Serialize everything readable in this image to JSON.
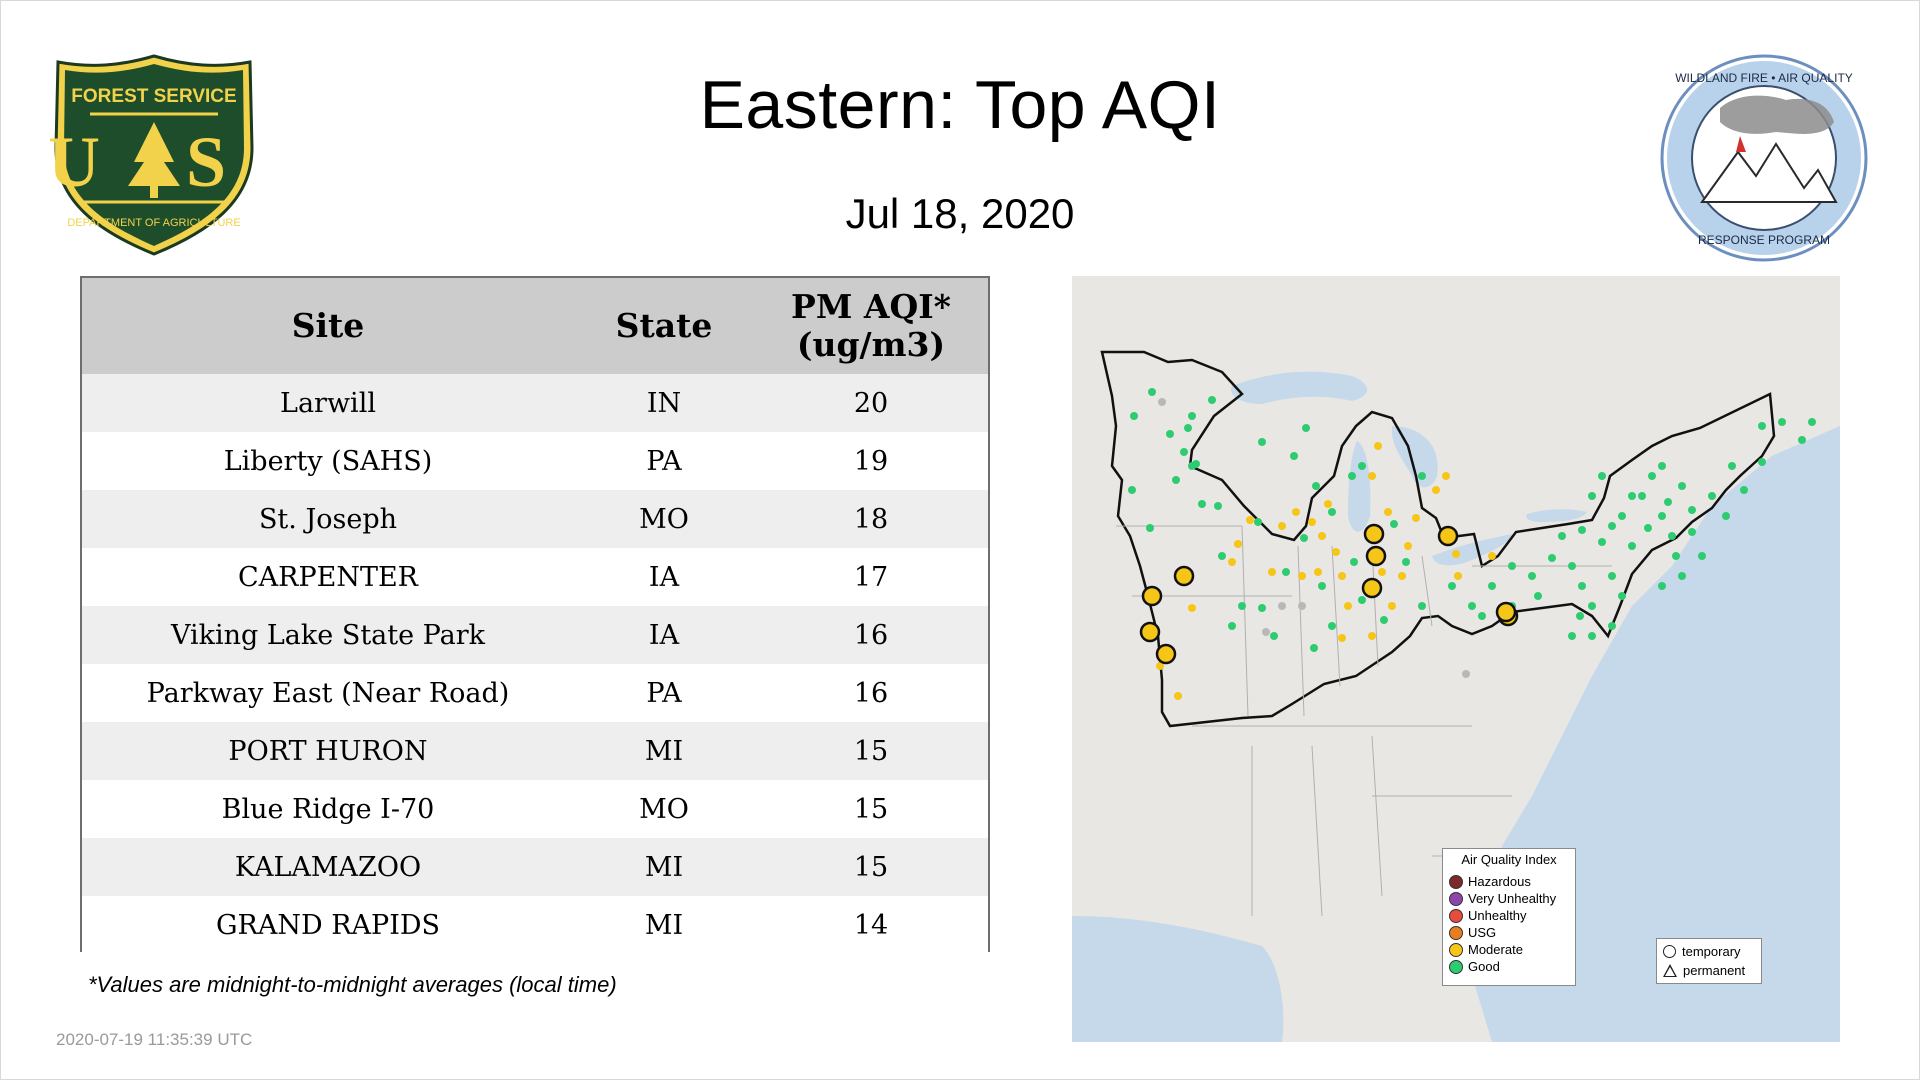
{
  "header": {
    "title": "Eastern: Top AQI",
    "date": "Jul 18, 2020"
  },
  "logos": {
    "left": {
      "top_text": "FOREST SERVICE",
      "letters": "U S",
      "bottom_text": "DEPARTMENT OF AGRICULTURE"
    },
    "right": {
      "top_text": "WILDLAND FIRE • AIR QUALITY",
      "bottom_text": "RESPONSE PROGRAM"
    }
  },
  "table": {
    "headers": {
      "site": "Site",
      "state": "State",
      "aqi_line1": "PM AQI*",
      "aqi_line2": "(ug/m3)"
    },
    "rows": [
      {
        "site": "Larwill",
        "state": "IN",
        "aqi": "20"
      },
      {
        "site": "Liberty (SAHS)",
        "state": "PA",
        "aqi": "19"
      },
      {
        "site": "St. Joseph",
        "state": "MO",
        "aqi": "18"
      },
      {
        "site": "CARPENTER",
        "state": "IA",
        "aqi": "17"
      },
      {
        "site": "Viking Lake State Park",
        "state": "IA",
        "aqi": "16"
      },
      {
        "site": "Parkway East (Near Road)",
        "state": "PA",
        "aqi": "16"
      },
      {
        "site": "PORT HURON",
        "state": "MI",
        "aqi": "15"
      },
      {
        "site": "Blue Ridge I-70",
        "state": "MO",
        "aqi": "15"
      },
      {
        "site": "KALAMAZOO",
        "state": "MI",
        "aqi": "15"
      },
      {
        "site": "GRAND RAPIDS",
        "state": "MI",
        "aqi": "14"
      }
    ]
  },
  "footnote": "*Values are midnight-to-midnight averages (local time)",
  "timestamp": "2020-07-19 11:35:39 UTC",
  "map": {
    "colors": {
      "water": "#c6d9ea",
      "land": "#e9e7e4",
      "good": "#2ecc71",
      "moderate": "#f5c518",
      "missing": "#b8b8b8"
    },
    "legend": {
      "title": "Air Quality Index",
      "items": [
        {
          "label": "Hazardous",
          "color": "#7e2a2a"
        },
        {
          "label": "Very Unhealthy",
          "color": "#8e44ad"
        },
        {
          "label": "Unhealthy",
          "color": "#e74c3c"
        },
        {
          "label": "USG",
          "color": "#e67e22"
        },
        {
          "label": "Moderate",
          "color": "#f5c518"
        },
        {
          "label": "Good",
          "color": "#2ecc71"
        }
      ]
    },
    "shape_legend": {
      "temporary": "temporary",
      "permanent": "permanent"
    }
  }
}
